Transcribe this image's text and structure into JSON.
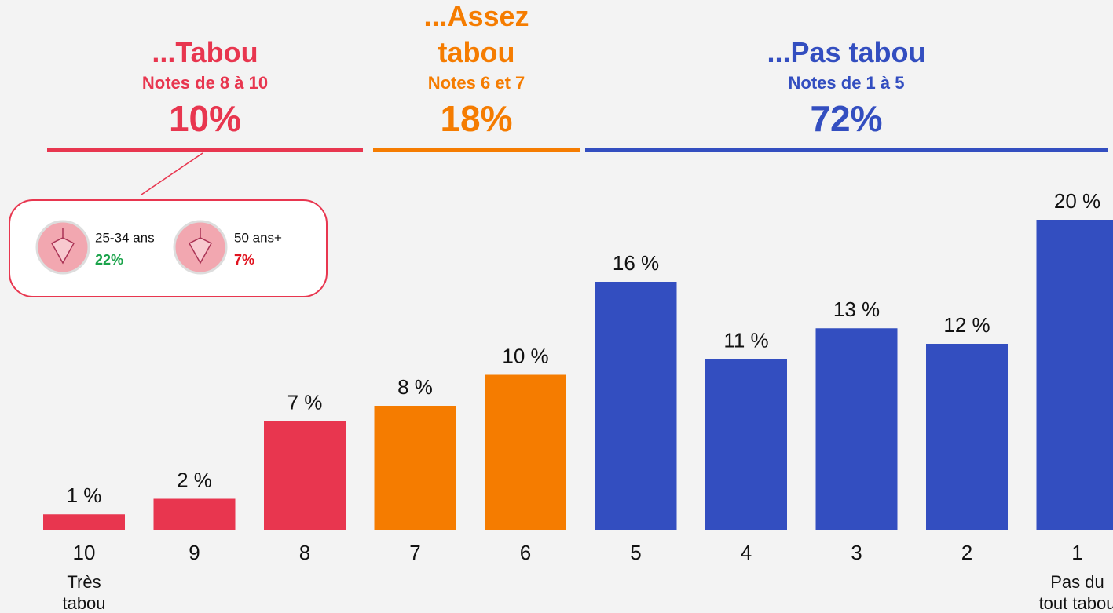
{
  "chart_data": {
    "type": "bar",
    "categories": [
      "10",
      "9",
      "8",
      "7",
      "6",
      "5",
      "4",
      "3",
      "2",
      "1"
    ],
    "category_notes": [
      [
        "Très",
        "tabou"
      ],
      null,
      null,
      null,
      null,
      null,
      null,
      null,
      null,
      [
        "Pas du",
        "tout tabou"
      ]
    ],
    "values": [
      1,
      2,
      7,
      8,
      10,
      16,
      11,
      13,
      12,
      20
    ],
    "value_labels": [
      "1 %",
      "2 %",
      "7 %",
      "8 %",
      "10 %",
      "16 %",
      "11 %",
      "13 %",
      "12 %",
      "20 %"
    ],
    "colors": [
      "#e8364f",
      "#e8364f",
      "#e8364f",
      "#f57c00",
      "#f57c00",
      "#334ec0",
      "#334ec0",
      "#334ec0",
      "#334ec0",
      "#334ec0"
    ],
    "groups": [
      {
        "title": "...Tabou",
        "subtitle": "Notes de 8 à 10",
        "share": 10,
        "share_label": "10%",
        "color": "#e8364f"
      },
      {
        "title": "...Assez tabou",
        "subtitle": "Notes 6 et 7",
        "share": 18,
        "share_label": "18%",
        "color": "#f57c00"
      },
      {
        "title": "...Pas tabou",
        "subtitle": "Notes de 1 à 5",
        "share": 72,
        "share_label": "72%",
        "color": "#334ec0"
      }
    ],
    "callout": [
      {
        "label": "25-34 ans",
        "value": 22,
        "value_label": "22%",
        "color": "#1aa34a"
      },
      {
        "label": "50 ans+",
        "value": 7,
        "value_label": "7%",
        "color": "#e0131f"
      }
    ]
  }
}
